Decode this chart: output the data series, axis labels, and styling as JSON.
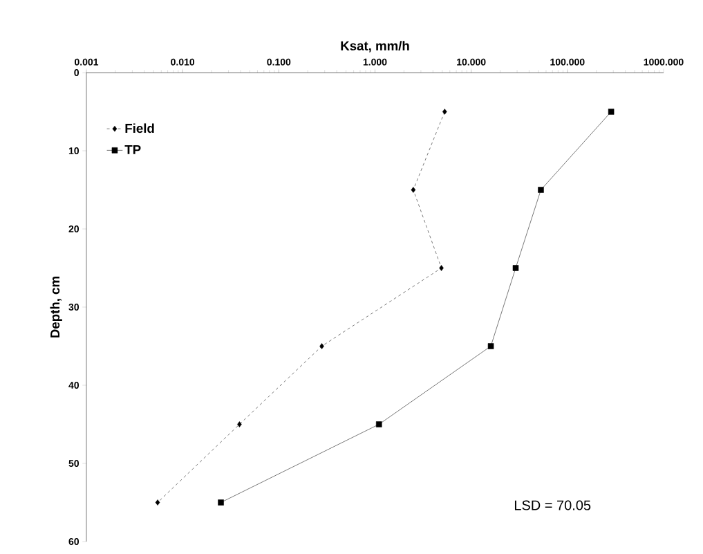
{
  "chart_data": {
    "type": "line",
    "xlabel": "Ksat, mm/h",
    "ylabel": "Depth, cm",
    "log": "x",
    "xlim": [
      0.001,
      1000
    ],
    "ylim": [
      60,
      0
    ],
    "xticks": [
      {
        "value": 0.001,
        "label": "0.001"
      },
      {
        "value": 0.01,
        "label": "0.010"
      },
      {
        "value": 0.1,
        "label": "0.100"
      },
      {
        "value": 1,
        "label": "1.000"
      },
      {
        "value": 10,
        "label": "10.000"
      },
      {
        "value": 100,
        "label": "100.000"
      },
      {
        "value": 1000,
        "label": "1000.000"
      }
    ],
    "yticks": [
      0,
      10,
      20,
      30,
      40,
      50,
      60
    ],
    "legend": "top left",
    "grid": false,
    "annotations": [
      "LSD = 70.05"
    ],
    "series": [
      {
        "name": "Field",
        "color": "#000000",
        "marker": "diamond",
        "line_style": "dashed",
        "x": [
          5.3,
          2.5,
          4.9,
          0.28,
          0.039,
          0.0055
        ],
        "values": [
          5,
          15,
          25,
          35,
          45,
          55
        ]
      },
      {
        "name": "TP",
        "color": "#000000",
        "marker": "square",
        "line_style": "solid",
        "x": [
          285,
          53,
          29,
          16,
          1.1,
          0.025
        ],
        "values": [
          5,
          15,
          25,
          35,
          45,
          55
        ]
      }
    ]
  }
}
